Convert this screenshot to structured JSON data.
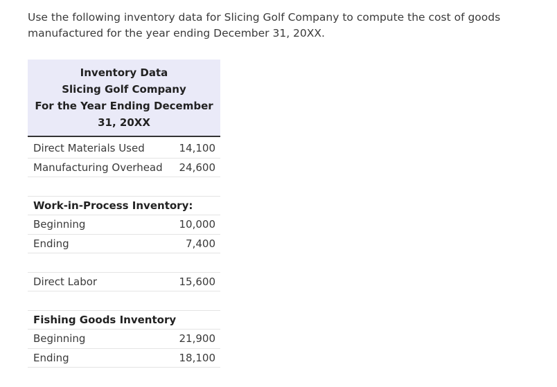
{
  "prompt": "Use the following inventory data for Slicing Golf Company to compute the cost of goods manufactured for the year ending December 31, 20XX.",
  "table": {
    "header": {
      "line1": "Inventory Data",
      "line2": "Slicing Golf Company",
      "line3": "For the Year Ending December 31, 20XX"
    },
    "rows": {
      "direct_materials": {
        "label": "Direct Materials Used",
        "value": "14,100"
      },
      "overhead": {
        "label": "Manufacturing Overhead",
        "value": "24,600"
      },
      "wip_heading": "Work-in-Process Inventory:",
      "wip_beginning": {
        "label": "Beginning",
        "value": "10,000"
      },
      "wip_ending": {
        "label": "Ending",
        "value": "7,400"
      },
      "direct_labor": {
        "label": "Direct Labor",
        "value": "15,600"
      },
      "fg_heading": "Fishing Goods Inventory",
      "fg_beginning": {
        "label": "Beginning",
        "value": "21,900"
      },
      "fg_ending": {
        "label": "Ending",
        "value": "18,100"
      }
    }
  }
}
